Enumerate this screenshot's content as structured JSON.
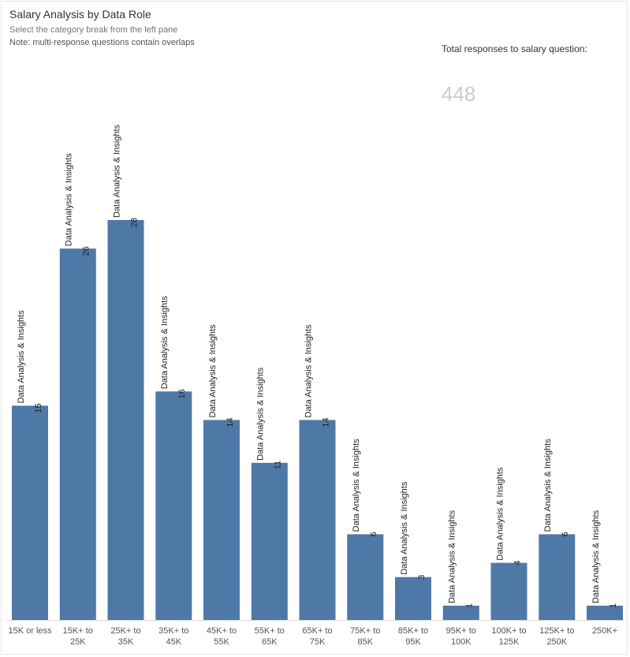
{
  "header": {
    "title": "Salary Analysis by Data Role",
    "subtitle": "Select the category break from the left pane",
    "note": "Note: multi-response questions contain overlaps"
  },
  "kpi": {
    "label": "Total responses to salary question:",
    "value": "448"
  },
  "colors": {
    "bar": "#4e79a7",
    "kpi_value": "#cccccc"
  },
  "chart_data": {
    "type": "bar",
    "categories": [
      [
        "15K or less"
      ],
      [
        "15K+ to",
        "25K"
      ],
      [
        "25K+ to",
        "35K"
      ],
      [
        "35K+ to",
        "45K"
      ],
      [
        "45K+ to",
        "55K"
      ],
      [
        "55K+ to",
        "65K"
      ],
      [
        "65K+ to",
        "75K"
      ],
      [
        "75K+ to",
        "85K"
      ],
      [
        "85K+ to",
        "95K"
      ],
      [
        "95K+ to",
        "100K"
      ],
      [
        "100K+ to",
        "125K"
      ],
      [
        "125K+ to",
        "250K"
      ],
      [
        "250K+"
      ]
    ],
    "series": [
      {
        "name": "Data Analysis & Insights",
        "values": [
          15,
          26,
          28,
          16,
          14,
          11,
          14,
          6,
          3,
          1,
          4,
          6,
          1
        ]
      }
    ],
    "ylim": [
      0,
      28
    ],
    "grid": false,
    "legend": "none"
  }
}
